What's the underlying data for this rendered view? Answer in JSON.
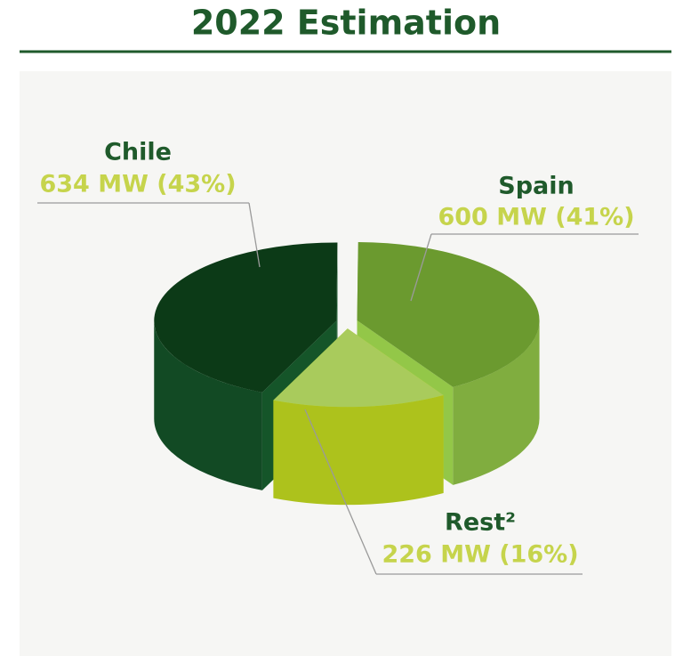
{
  "chart_data": {
    "type": "pie3d",
    "title": "2022 Estimation",
    "categories": [
      "Chile",
      "Spain",
      "Rest²"
    ],
    "values": [
      634,
      600,
      226
    ],
    "value_labels": [
      "634 MW (43%)",
      "600 MW (41%)",
      "226 MW (16%)"
    ],
    "colors": [
      "#0c3a17",
      "#6b9a2f",
      "#a9cb5c"
    ],
    "side_colors": [
      "#124a24",
      "#80ad3f",
      "#adc21c"
    ]
  }
}
